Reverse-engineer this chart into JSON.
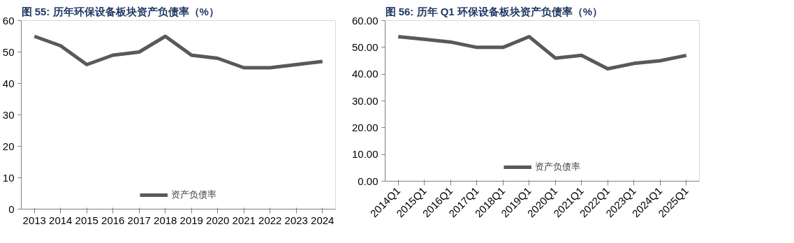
{
  "chart_data": [
    {
      "type": "line",
      "title": "图  55:  历年环保设备板块资产负债率（%）",
      "categories": [
        "2013",
        "2014",
        "2015",
        "2016",
        "2017",
        "2018",
        "2019",
        "2020",
        "2021",
        "2022",
        "2023",
        "2024"
      ],
      "series": [
        {
          "name": "资产负债率",
          "color": "#595959",
          "values": [
            55,
            52,
            46,
            49,
            50,
            55,
            49,
            48,
            45,
            45,
            46,
            47
          ]
        }
      ],
      "ylim": [
        0,
        60
      ],
      "yticks": [
        0,
        10,
        20,
        30,
        40,
        50,
        60
      ],
      "grid": false,
      "legend": "bottom",
      "marker": "none",
      "line_style": "solid"
    },
    {
      "type": "line",
      "title": "图  56:  历年 Q1 环保设备板块资产负债率（%）",
      "categories": [
        "2014Q1",
        "2015Q1",
        "2016Q1",
        "2017Q1",
        "2018Q1",
        "2019Q1",
        "2020Q1",
        "2021Q1",
        "2022Q1",
        "2023Q1",
        "2024Q1",
        "2025Q1"
      ],
      "series": [
        {
          "name": "资产负债率",
          "color": "#595959",
          "values": [
            54,
            53,
            52,
            50,
            50,
            54,
            46,
            47,
            42,
            44,
            45,
            47
          ]
        }
      ],
      "ylim": [
        0,
        60
      ],
      "yticks": [
        {
          "value": 0,
          "label": "0.00"
        },
        {
          "value": 10,
          "label": "10.00"
        },
        {
          "value": 20,
          "label": "20.00"
        },
        {
          "value": 30,
          "label": "30.00"
        },
        {
          "value": 40,
          "label": "40.00"
        },
        {
          "value": 50,
          "label": "50.00"
        },
        {
          "value": 60,
          "label": "60.00"
        }
      ],
      "grid": false,
      "legend": "bottom",
      "marker": "none",
      "line_style": "solid"
    }
  ]
}
